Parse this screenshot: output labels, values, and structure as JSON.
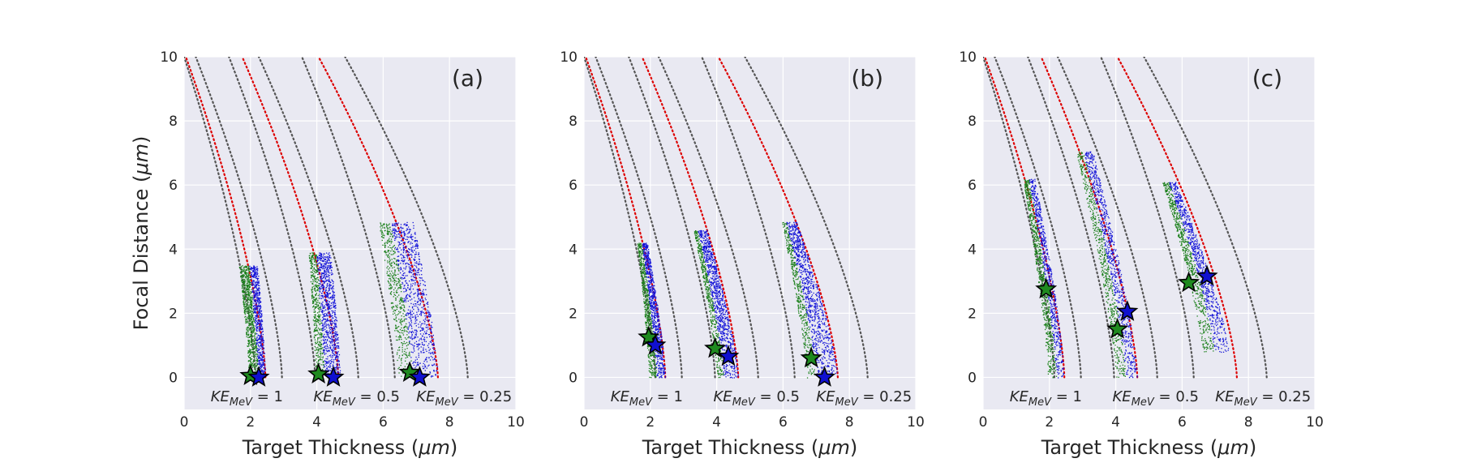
{
  "chart_data": [
    {
      "type": "scatter",
      "panel_label": "(a)",
      "xlabel_main": "Target Thickness (",
      "xlabel_unit": "μm",
      "xlabel_end": ")",
      "ylabel_main": "Focal Distance (",
      "ylabel_unit": "μm",
      "ylabel_end": ")",
      "xlim": [
        0,
        10
      ],
      "ylim": [
        -1,
        10
      ],
      "xticks": [
        "0",
        "2",
        "4",
        "6",
        "8",
        "10"
      ],
      "yticks": [
        "0",
        "2",
        "4",
        "6",
        "8",
        "10"
      ],
      "grid": true,
      "background": "#e9e9f2",
      "annotations": [
        {
          "sym": "KE",
          "sub": "MeV",
          "rest": " = 1",
          "x": 0.8
        },
        {
          "sym": "KE",
          "sub": "MeV",
          "rest": " = 0.5",
          "x": 3.9
        },
        {
          "sym": "KE",
          "sub": "MeV",
          "rest": " = 0.25",
          "x": 7.0
        }
      ],
      "boundary_curves": [
        {
          "color": "#555555",
          "style": "dotted",
          "x0": 0.0,
          "x1": 2.15
        },
        {
          "color": "#555555",
          "style": "dotted",
          "x0": 0.35,
          "x1": 2.95
        },
        {
          "color": "#dd0000",
          "style": "dotted",
          "x0": 0.05,
          "x1": 2.45
        },
        {
          "color": "#555555",
          "style": "dotted",
          "x0": 1.35,
          "x1": 3.95
        },
        {
          "color": "#dd0000",
          "style": "dotted",
          "x0": 1.75,
          "x1": 4.65
        },
        {
          "color": "#555555",
          "style": "dotted",
          "x0": 2.25,
          "x1": 5.25
        },
        {
          "color": "#555555",
          "style": "dotted",
          "x0": 3.55,
          "x1": 6.35
        },
        {
          "color": "#dd0000",
          "style": "dotted",
          "x0": 4.05,
          "x1": 7.65
        },
        {
          "color": "#555555",
          "style": "dotted",
          "x0": 4.85,
          "x1": 8.55
        }
      ],
      "regions": [
        {
          "ytop": 3.5,
          "xl_top": 1.65,
          "xl_bot": 1.95,
          "xr_top": 2.2,
          "xr_bot": 2.45,
          "green_frac": 0.55
        },
        {
          "ytop": 3.9,
          "xl_top": 3.75,
          "xl_bot": 3.95,
          "xr_top": 4.4,
          "xr_bot": 4.7,
          "green_frac": 0.35
        },
        {
          "ytop": 4.85,
          "xl_top": 5.85,
          "xl_bot": 6.45,
          "xr_top": 6.9,
          "xr_bot": 7.65,
          "green_frac": 0.35
        }
      ],
      "stars": [
        {
          "x": 2.0,
          "y": 0.05,
          "color": "#1f8a1f"
        },
        {
          "x": 2.25,
          "y": 0.0,
          "color": "#1010d0"
        },
        {
          "x": 4.05,
          "y": 0.1,
          "color": "#1f8a1f"
        },
        {
          "x": 4.5,
          "y": 0.0,
          "color": "#1010d0"
        },
        {
          "x": 6.8,
          "y": 0.15,
          "color": "#1f8a1f"
        },
        {
          "x": 7.1,
          "y": 0.0,
          "color": "#1010d0"
        }
      ]
    },
    {
      "type": "scatter",
      "panel_label": "(b)",
      "xlabel_main": "Target Thickness (",
      "xlabel_unit": "μm",
      "xlabel_end": ")",
      "ylabel_main": "",
      "ylabel_unit": "",
      "ylabel_end": "",
      "xlim": [
        0,
        10
      ],
      "ylim": [
        -1,
        10
      ],
      "xticks": [
        "0",
        "2",
        "4",
        "6",
        "8",
        "10"
      ],
      "yticks": [
        "0",
        "2",
        "4",
        "6",
        "8",
        "10"
      ],
      "grid": true,
      "background": "#e9e9f2",
      "annotations": [
        {
          "sym": "KE",
          "sub": "MeV",
          "rest": " = 1",
          "x": 0.8
        },
        {
          "sym": "KE",
          "sub": "MeV",
          "rest": " = 0.5",
          "x": 3.9
        },
        {
          "sym": "KE",
          "sub": "MeV",
          "rest": " = 0.25",
          "x": 7.0
        }
      ],
      "boundary_curves": [
        {
          "color": "#555555",
          "style": "dotted",
          "x0": 0.0,
          "x1": 2.15
        },
        {
          "color": "#555555",
          "style": "dotted",
          "x0": 0.35,
          "x1": 2.95
        },
        {
          "color": "#dd0000",
          "style": "dotted",
          "x0": 0.05,
          "x1": 2.45
        },
        {
          "color": "#555555",
          "style": "dotted",
          "x0": 1.35,
          "x1": 3.95
        },
        {
          "color": "#dd0000",
          "style": "dotted",
          "x0": 1.75,
          "x1": 4.65
        },
        {
          "color": "#555555",
          "style": "dotted",
          "x0": 2.25,
          "x1": 5.25
        },
        {
          "color": "#555555",
          "style": "dotted",
          "x0": 3.55,
          "x1": 6.35
        },
        {
          "color": "#dd0000",
          "style": "dotted",
          "x0": 4.05,
          "x1": 7.65
        },
        {
          "color": "#555555",
          "style": "dotted",
          "x0": 4.85,
          "x1": 8.55
        }
      ],
      "regions": [
        {
          "ytop": 4.2,
          "xl_top": 1.6,
          "xl_bot": 1.95,
          "xr_top": 1.9,
          "xr_bot": 2.45,
          "green_frac": 0.45
        },
        {
          "ytop": 4.6,
          "xl_top": 3.3,
          "xl_bot": 4.0,
          "xr_top": 3.7,
          "xr_bot": 4.65,
          "green_frac": 0.3
        },
        {
          "ytop": 4.85,
          "xl_top": 5.95,
          "xl_bot": 6.7,
          "xr_top": 6.4,
          "xr_bot": 7.65,
          "green_frac": 0.3
        }
      ],
      "stars": [
        {
          "x": 1.95,
          "y": 1.25,
          "color": "#1f8a1f"
        },
        {
          "x": 2.15,
          "y": 1.0,
          "color": "#1010d0"
        },
        {
          "x": 3.95,
          "y": 0.9,
          "color": "#1f8a1f"
        },
        {
          "x": 4.35,
          "y": 0.65,
          "color": "#1010d0"
        },
        {
          "x": 6.85,
          "y": 0.6,
          "color": "#1f8a1f"
        },
        {
          "x": 7.25,
          "y": 0.0,
          "color": "#1010d0"
        }
      ]
    },
    {
      "type": "scatter",
      "panel_label": "(c)",
      "xlabel_main": "Target Thickness (",
      "xlabel_unit": "μm",
      "xlabel_end": ")",
      "ylabel_main": "",
      "ylabel_unit": "",
      "ylabel_end": "",
      "xlim": [
        0,
        10
      ],
      "ylim": [
        -1,
        10
      ],
      "xticks": [
        "0",
        "2",
        "4",
        "6",
        "8",
        "10"
      ],
      "yticks": [
        "0",
        "2",
        "4",
        "6",
        "8",
        "10"
      ],
      "grid": true,
      "background": "#e9e9f2",
      "annotations": [
        {
          "sym": "KE",
          "sub": "MeV",
          "rest": " = 1",
          "x": 0.8
        },
        {
          "sym": "KE",
          "sub": "MeV",
          "rest": " = 0.5",
          "x": 3.9
        },
        {
          "sym": "KE",
          "sub": "MeV",
          "rest": " = 0.25",
          "x": 7.0
        }
      ],
      "boundary_curves": [
        {
          "color": "#555555",
          "style": "dotted",
          "x0": 0.0,
          "x1": 2.15
        },
        {
          "color": "#555555",
          "style": "dotted",
          "x0": 0.35,
          "x1": 2.95
        },
        {
          "color": "#dd0000",
          "style": "dotted",
          "x0": 0.05,
          "x1": 2.45
        },
        {
          "color": "#555555",
          "style": "dotted",
          "x0": 1.35,
          "x1": 3.95
        },
        {
          "color": "#dd0000",
          "style": "dotted",
          "x0": 1.75,
          "x1": 4.65
        },
        {
          "color": "#555555",
          "style": "dotted",
          "x0": 2.25,
          "x1": 5.25
        },
        {
          "color": "#555555",
          "style": "dotted",
          "x0": 3.55,
          "x1": 6.35
        },
        {
          "color": "#dd0000",
          "style": "dotted",
          "x0": 4.05,
          "x1": 7.65
        },
        {
          "color": "#555555",
          "style": "dotted",
          "x0": 4.85,
          "x1": 8.55
        }
      ],
      "regions": [
        {
          "ytop": 6.2,
          "xl_top": 1.2,
          "xl_bot": 1.95,
          "xr_top": 1.55,
          "xr_bot": 2.45,
          "green_frac": 0.5
        },
        {
          "ytop": 7.05,
          "xl_top": 2.8,
          "xl_bot": 4.0,
          "xr_top": 3.3,
          "xr_bot": 4.65,
          "green_frac": 0.45
        },
        {
          "ytop": 6.1,
          "xl_top": 5.4,
          "xl_bot": 6.6,
          "xr_top": 5.8,
          "xr_bot": 7.4,
          "green_frac": 0.45,
          "ybot": 0.8
        }
      ],
      "stars": [
        {
          "x": 1.9,
          "y": 2.75,
          "color": "#1f8a1f"
        },
        {
          "x": 4.05,
          "y": 1.5,
          "color": "#1f8a1f"
        },
        {
          "x": 4.35,
          "y": 2.05,
          "color": "#1010d0"
        },
        {
          "x": 6.2,
          "y": 2.95,
          "color": "#1f8a1f"
        },
        {
          "x": 6.75,
          "y": 3.15,
          "color": "#1010d0"
        }
      ]
    }
  ]
}
